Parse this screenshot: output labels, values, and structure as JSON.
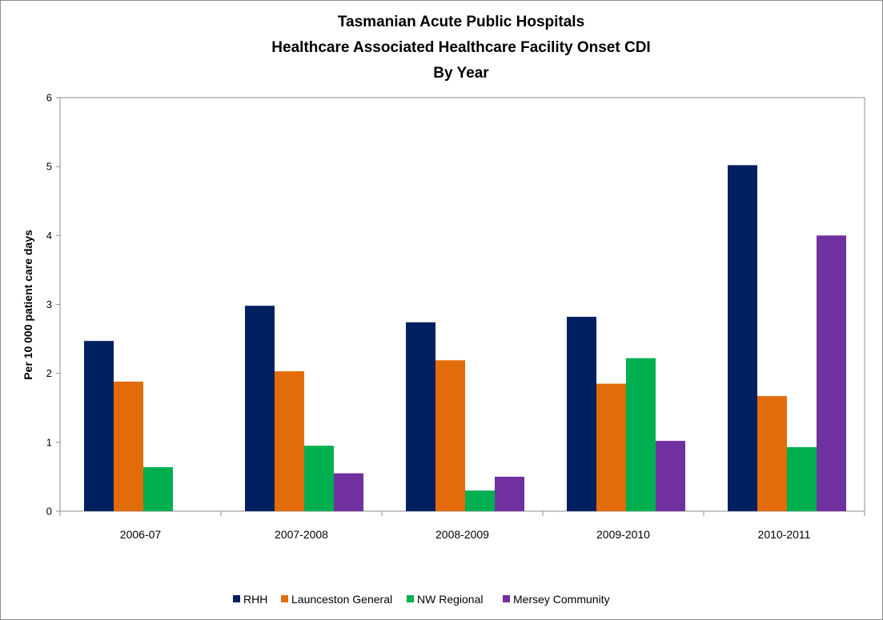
{
  "chart_data": {
    "type": "bar",
    "title_lines": [
      "Tasmanian Acute Public Hospitals",
      "Healthcare Associated Healthcare Facility Onset CDI",
      "By Year"
    ],
    "ylabel": "Per 10 000 patient care days",
    "xlabel": "",
    "ylim": [
      0,
      6
    ],
    "yticks": [
      "0",
      "1",
      "2",
      "3",
      "4",
      "5",
      "6"
    ],
    "categories": [
      "2006-07",
      "2007-2008",
      "2008-2009",
      "2009-2010",
      "2010-2011"
    ],
    "series": [
      {
        "name": "RHH",
        "color": "#002060",
        "values": [
          2.47,
          2.98,
          2.74,
          2.82,
          5.02
        ]
      },
      {
        "name": "Launceston General",
        "color": "#E36C0A",
        "values": [
          1.88,
          2.03,
          2.19,
          1.85,
          1.67
        ]
      },
      {
        "name": "NW Regional",
        "color": "#00B050",
        "values": [
          0.64,
          0.95,
          0.3,
          2.22,
          0.93
        ]
      },
      {
        "name": "Mersey Community",
        "color": "#7030A0",
        "values": [
          null,
          0.55,
          0.5,
          1.02,
          4.0
        ]
      }
    ],
    "grid": false,
    "legend_position": "bottom"
  }
}
